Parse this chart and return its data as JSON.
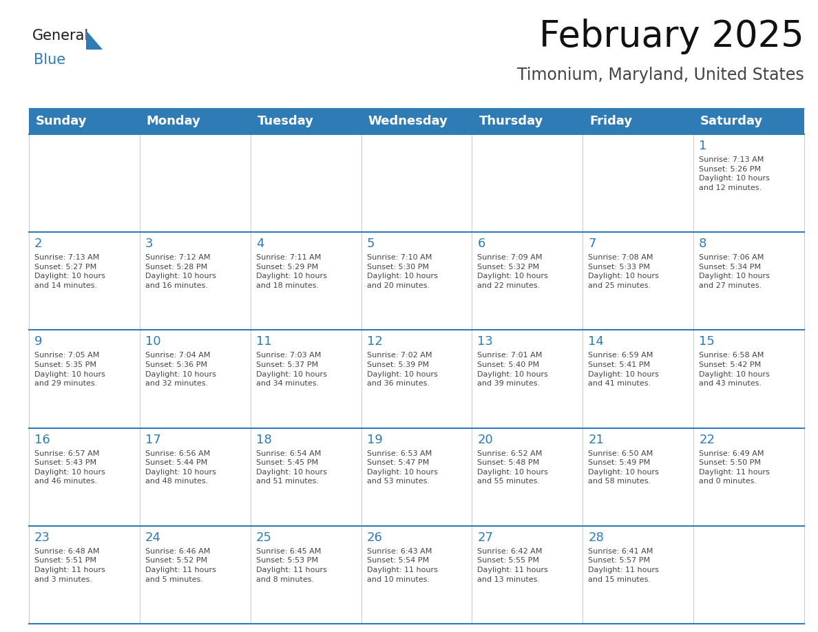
{
  "title": "February 2025",
  "subtitle": "Timonium, Maryland, United States",
  "header_bg": "#2E7BB5",
  "header_text_color": "#FFFFFF",
  "cell_bg": "#FFFFFF",
  "cell_border_color": "#CCCCCC",
  "row_line_color": "#2E7BB5",
  "day_number_color": "#2E7BB5",
  "day_info_color": "#444444",
  "days_of_week": [
    "Sunday",
    "Monday",
    "Tuesday",
    "Wednesday",
    "Thursday",
    "Friday",
    "Saturday"
  ],
  "weeks": [
    [
      {
        "day": "",
        "info": ""
      },
      {
        "day": "",
        "info": ""
      },
      {
        "day": "",
        "info": ""
      },
      {
        "day": "",
        "info": ""
      },
      {
        "day": "",
        "info": ""
      },
      {
        "day": "",
        "info": ""
      },
      {
        "day": "1",
        "info": "Sunrise: 7:13 AM\nSunset: 5:26 PM\nDaylight: 10 hours\nand 12 minutes."
      }
    ],
    [
      {
        "day": "2",
        "info": "Sunrise: 7:13 AM\nSunset: 5:27 PM\nDaylight: 10 hours\nand 14 minutes."
      },
      {
        "day": "3",
        "info": "Sunrise: 7:12 AM\nSunset: 5:28 PM\nDaylight: 10 hours\nand 16 minutes."
      },
      {
        "day": "4",
        "info": "Sunrise: 7:11 AM\nSunset: 5:29 PM\nDaylight: 10 hours\nand 18 minutes."
      },
      {
        "day": "5",
        "info": "Sunrise: 7:10 AM\nSunset: 5:30 PM\nDaylight: 10 hours\nand 20 minutes."
      },
      {
        "day": "6",
        "info": "Sunrise: 7:09 AM\nSunset: 5:32 PM\nDaylight: 10 hours\nand 22 minutes."
      },
      {
        "day": "7",
        "info": "Sunrise: 7:08 AM\nSunset: 5:33 PM\nDaylight: 10 hours\nand 25 minutes."
      },
      {
        "day": "8",
        "info": "Sunrise: 7:06 AM\nSunset: 5:34 PM\nDaylight: 10 hours\nand 27 minutes."
      }
    ],
    [
      {
        "day": "9",
        "info": "Sunrise: 7:05 AM\nSunset: 5:35 PM\nDaylight: 10 hours\nand 29 minutes."
      },
      {
        "day": "10",
        "info": "Sunrise: 7:04 AM\nSunset: 5:36 PM\nDaylight: 10 hours\nand 32 minutes."
      },
      {
        "day": "11",
        "info": "Sunrise: 7:03 AM\nSunset: 5:37 PM\nDaylight: 10 hours\nand 34 minutes."
      },
      {
        "day": "12",
        "info": "Sunrise: 7:02 AM\nSunset: 5:39 PM\nDaylight: 10 hours\nand 36 minutes."
      },
      {
        "day": "13",
        "info": "Sunrise: 7:01 AM\nSunset: 5:40 PM\nDaylight: 10 hours\nand 39 minutes."
      },
      {
        "day": "14",
        "info": "Sunrise: 6:59 AM\nSunset: 5:41 PM\nDaylight: 10 hours\nand 41 minutes."
      },
      {
        "day": "15",
        "info": "Sunrise: 6:58 AM\nSunset: 5:42 PM\nDaylight: 10 hours\nand 43 minutes."
      }
    ],
    [
      {
        "day": "16",
        "info": "Sunrise: 6:57 AM\nSunset: 5:43 PM\nDaylight: 10 hours\nand 46 minutes."
      },
      {
        "day": "17",
        "info": "Sunrise: 6:56 AM\nSunset: 5:44 PM\nDaylight: 10 hours\nand 48 minutes."
      },
      {
        "day": "18",
        "info": "Sunrise: 6:54 AM\nSunset: 5:45 PM\nDaylight: 10 hours\nand 51 minutes."
      },
      {
        "day": "19",
        "info": "Sunrise: 6:53 AM\nSunset: 5:47 PM\nDaylight: 10 hours\nand 53 minutes."
      },
      {
        "day": "20",
        "info": "Sunrise: 6:52 AM\nSunset: 5:48 PM\nDaylight: 10 hours\nand 55 minutes."
      },
      {
        "day": "21",
        "info": "Sunrise: 6:50 AM\nSunset: 5:49 PM\nDaylight: 10 hours\nand 58 minutes."
      },
      {
        "day": "22",
        "info": "Sunrise: 6:49 AM\nSunset: 5:50 PM\nDaylight: 11 hours\nand 0 minutes."
      }
    ],
    [
      {
        "day": "23",
        "info": "Sunrise: 6:48 AM\nSunset: 5:51 PM\nDaylight: 11 hours\nand 3 minutes."
      },
      {
        "day": "24",
        "info": "Sunrise: 6:46 AM\nSunset: 5:52 PM\nDaylight: 11 hours\nand 5 minutes."
      },
      {
        "day": "25",
        "info": "Sunrise: 6:45 AM\nSunset: 5:53 PM\nDaylight: 11 hours\nand 8 minutes."
      },
      {
        "day": "26",
        "info": "Sunrise: 6:43 AM\nSunset: 5:54 PM\nDaylight: 11 hours\nand 10 minutes."
      },
      {
        "day": "27",
        "info": "Sunrise: 6:42 AM\nSunset: 5:55 PM\nDaylight: 11 hours\nand 13 minutes."
      },
      {
        "day": "28",
        "info": "Sunrise: 6:41 AM\nSunset: 5:57 PM\nDaylight: 11 hours\nand 15 minutes."
      },
      {
        "day": "",
        "info": ""
      }
    ]
  ],
  "logo_general_color": "#1a1a1a",
  "logo_blue_color": "#2E7BB5",
  "bg_color": "#FFFFFF",
  "title_fontsize": 38,
  "subtitle_fontsize": 17,
  "header_fontsize": 13,
  "day_num_fontsize": 13,
  "day_info_fontsize": 8.0
}
